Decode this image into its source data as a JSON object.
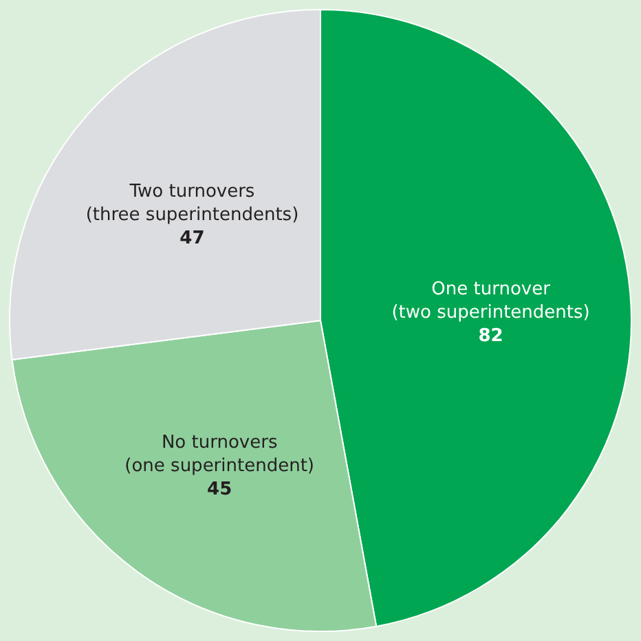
{
  "chart_data": {
    "type": "pie",
    "categories": [
      "One turnover\n(two superintendents)",
      "No turnovers\n(one superintendent)",
      "Two turnovers\n(three superintendents)"
    ],
    "values": [
      82,
      45,
      47
    ],
    "colors": [
      "#00a651",
      "#8fcf9c",
      "#dcdde0"
    ],
    "data_labels": true,
    "legend": false
  }
}
